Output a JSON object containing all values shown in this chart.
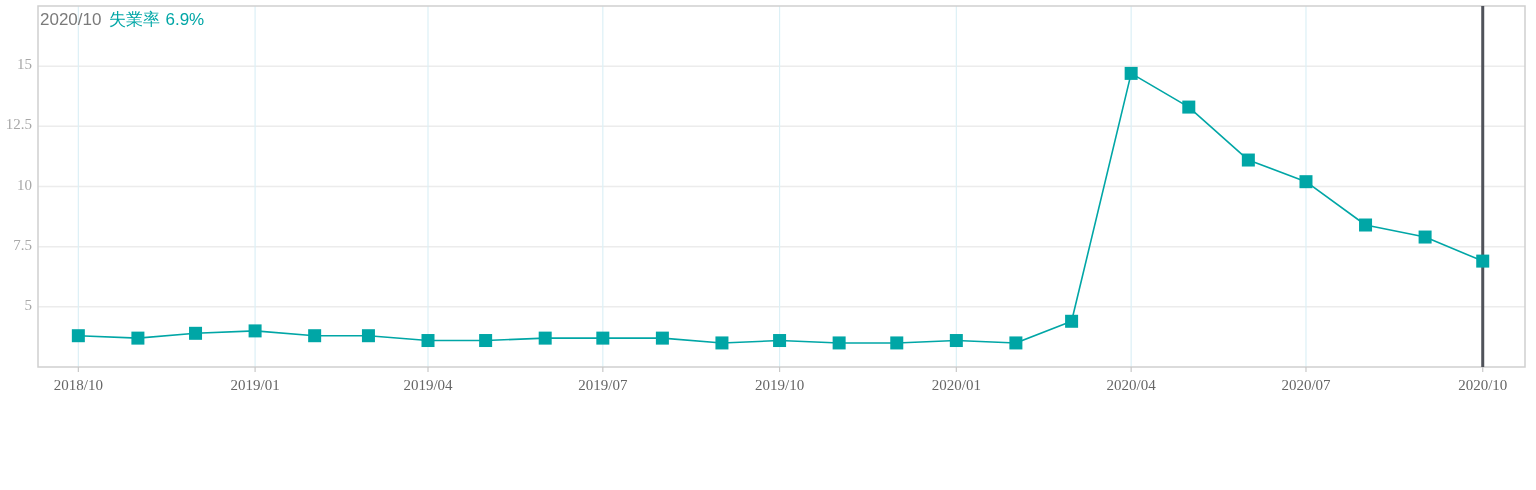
{
  "chart_data": {
    "type": "line",
    "x": [
      "2018-10",
      "2018-11",
      "2018-12",
      "2019-01",
      "2019-02",
      "2019-03",
      "2019-04",
      "2019-05",
      "2019-06",
      "2019-07",
      "2019-08",
      "2019-09",
      "2019-10",
      "2019-11",
      "2019-12",
      "2020-01",
      "2020-02",
      "2020-03",
      "2020-04",
      "2020-05",
      "2020-06",
      "2020-07",
      "2020-08",
      "2020-09",
      "2020-10"
    ],
    "series": [
      {
        "name": "失業率",
        "color": "#00a6a6",
        "values": [
          3.8,
          3.7,
          3.9,
          4.0,
          3.8,
          3.8,
          3.6,
          3.6,
          3.7,
          3.7,
          3.7,
          3.5,
          3.6,
          3.5,
          3.5,
          3.6,
          3.5,
          4.4,
          14.7,
          13.3,
          11.1,
          10.2,
          8.4,
          7.9,
          6.9
        ]
      }
    ],
    "xlim": [
      "2018-09-10",
      "2020-10-23"
    ],
    "xticks": [
      {
        "value": "2018-10",
        "label": "2018/10"
      },
      {
        "value": "2019-01",
        "label": "2019/01"
      },
      {
        "value": "2019-04",
        "label": "2019/04"
      },
      {
        "value": "2019-07",
        "label": "2019/07"
      },
      {
        "value": "2019-10",
        "label": "2019/10"
      },
      {
        "value": "2020-01",
        "label": "2020/01"
      },
      {
        "value": "2020-04",
        "label": "2020/04"
      },
      {
        "value": "2020-07",
        "label": "2020/07"
      },
      {
        "value": "2020-10",
        "label": "2020/10"
      }
    ],
    "ylim": [
      2.5,
      17.5
    ],
    "yticks": [
      5,
      7.5,
      10,
      12.5,
      15
    ],
    "grid": true,
    "marker": "square",
    "legend": "top left",
    "ref_lines": [
      {
        "axis": "x",
        "value": "2020-10",
        "color": "#50535a"
      }
    ],
    "annotations": [
      "2020/10",
      "6.9%"
    ]
  }
}
